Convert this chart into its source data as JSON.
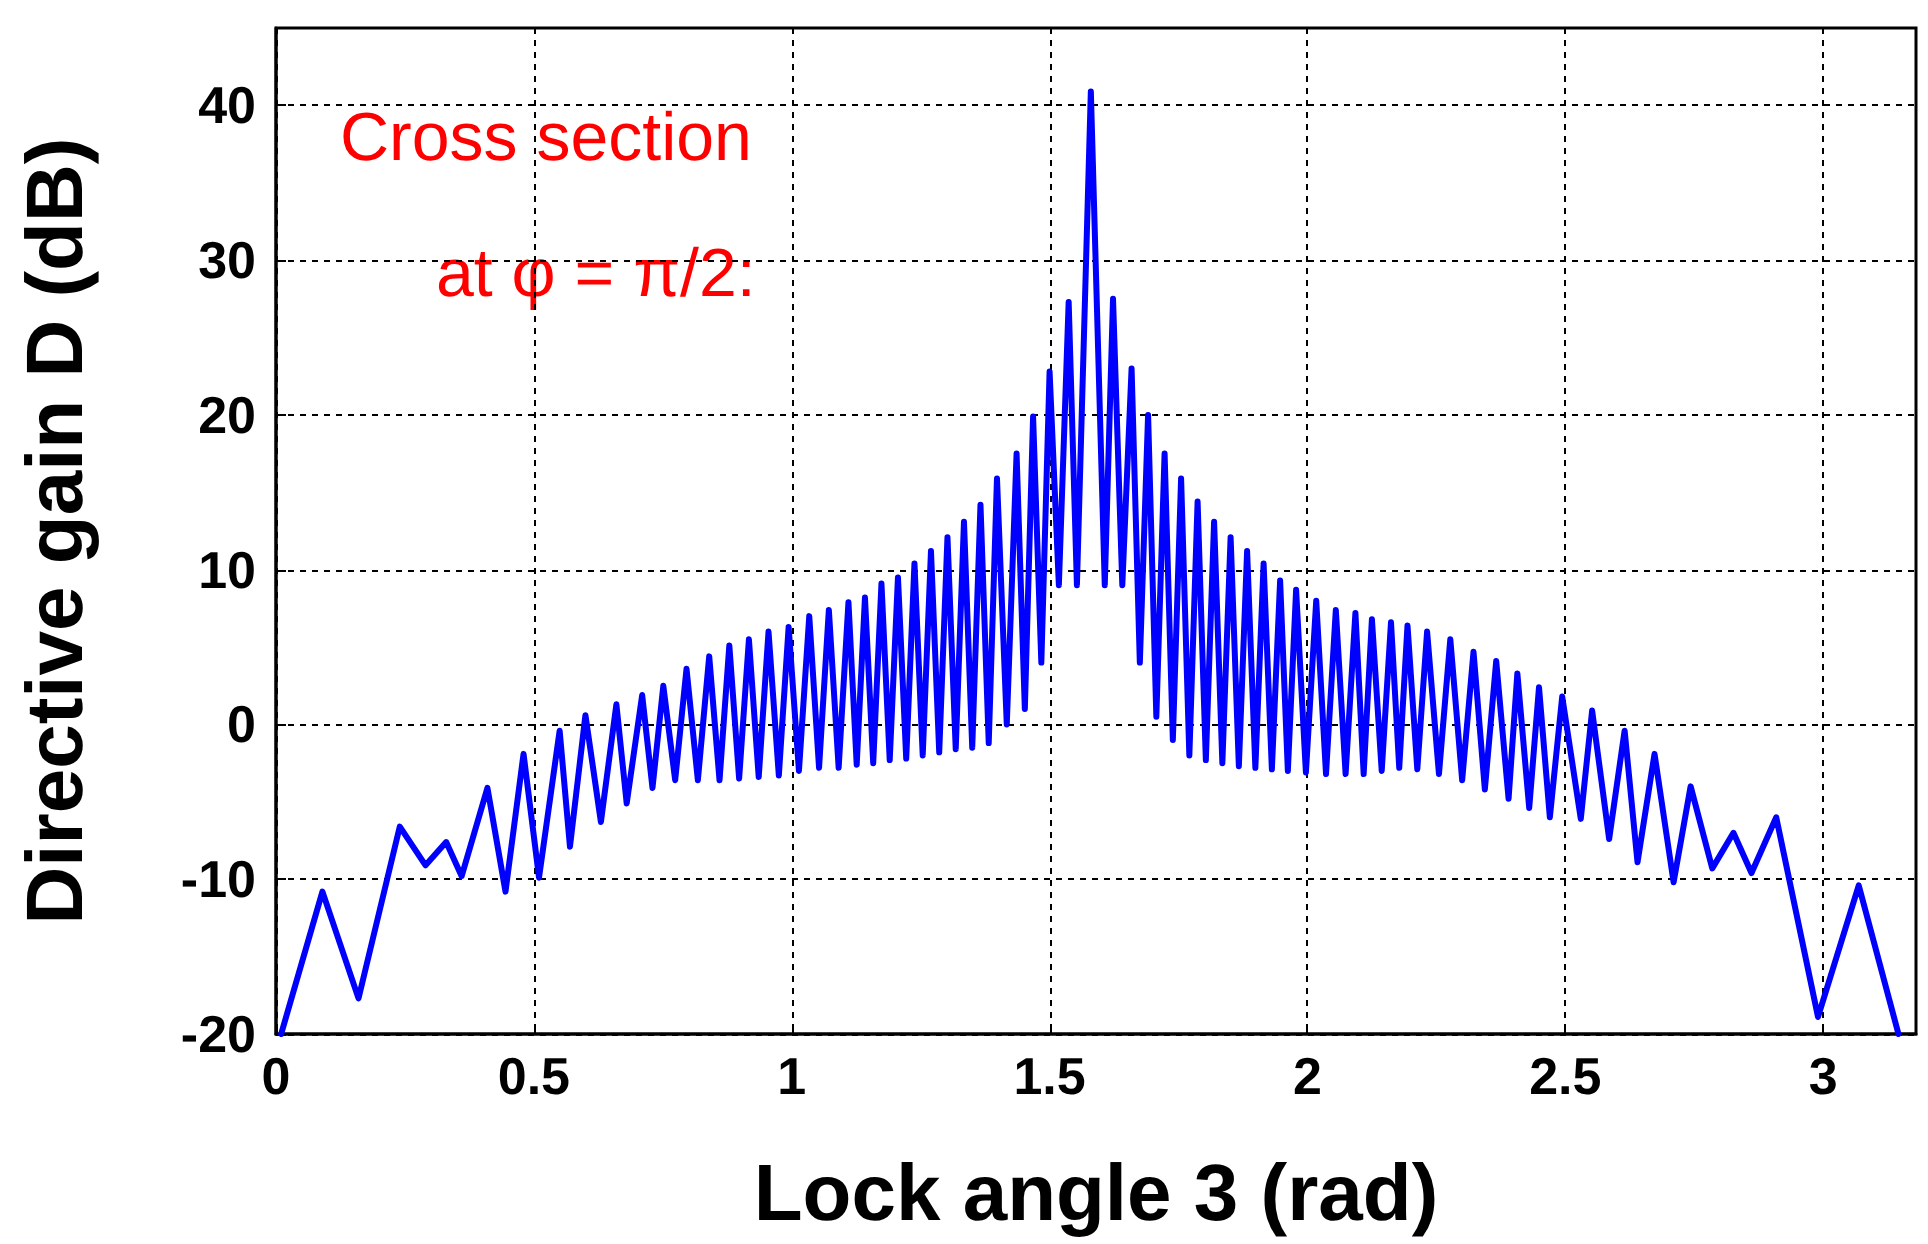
{
  "chart_data": {
    "type": "line",
    "xlabel": "Lock angle 3 (rad)",
    "ylabel": "Directive gain D (dB)",
    "annotations": [
      "Cross section",
      "at φ = π/2:"
    ],
    "xlim": [
      0,
      3.18
    ],
    "xticks": [
      0,
      0.5,
      1,
      1.5,
      2,
      2.5,
      3
    ],
    "ylim": [
      -20,
      45
    ],
    "yticks": [
      -20,
      -10,
      0,
      10,
      20,
      30,
      40
    ],
    "grid": true,
    "marker": "none",
    "line_style": "solid",
    "series": [
      {
        "color": "#0000ff",
        "x": [
          0.01,
          0.09,
          0.16,
          0.24,
          0.29,
          0.33,
          0.36,
          0.41,
          0.445,
          0.48,
          0.51,
          0.55,
          0.57,
          0.6,
          0.63,
          0.66,
          0.68,
          0.71,
          0.73,
          0.751,
          0.774,
          0.796,
          0.818,
          0.84,
          0.86,
          0.879,
          0.898,
          0.917,
          0.936,
          0.955,
          0.975,
          0.994,
          1.014,
          1.034,
          1.053,
          1.072,
          1.091,
          1.11,
          1.126,
          1.142,
          1.158,
          1.174,
          1.19,
          1.206,
          1.222,
          1.238,
          1.254,
          1.27,
          1.286,
          1.302,
          1.318,
          1.334,
          1.35,
          1.366,
          1.382,
          1.398,
          1.417,
          1.436,
          1.452,
          1.468,
          1.484,
          1.5,
          1.518,
          1.537,
          1.553,
          1.58,
          1.607,
          1.623,
          1.641,
          1.659,
          1.675,
          1.691,
          1.707,
          1.723,
          1.739,
          1.755,
          1.771,
          1.787,
          1.803,
          1.819,
          1.835,
          1.851,
          1.867,
          1.883,
          1.899,
          1.915,
          1.931,
          1.947,
          1.962,
          1.978,
          1.997,
          2.017,
          2.036,
          2.055,
          2.074,
          2.093,
          2.109,
          2.125,
          2.144,
          2.162,
          2.178,
          2.194,
          2.213,
          2.232,
          2.255,
          2.277,
          2.3,
          2.322,
          2.344,
          2.366,
          2.39,
          2.407,
          2.43,
          2.449,
          2.47,
          2.494,
          2.53,
          2.552,
          2.585,
          2.615,
          2.64,
          2.673,
          2.71,
          2.743,
          2.785,
          2.826,
          2.861,
          2.909,
          2.99,
          3.069,
          3.146
        ],
        "values": [
          -20,
          -10.8,
          -17.7,
          -6.6,
          -9.1,
          -7.6,
          -9.8,
          -4.1,
          -10.8,
          -1.9,
          -9.9,
          -0.4,
          -7.9,
          0.6,
          -6.3,
          1.3,
          -5.1,
          1.9,
          -4.1,
          2.5,
          -3.6,
          3.6,
          -3.6,
          4.4,
          -3.6,
          5.1,
          -3.5,
          5.5,
          -3.4,
          6,
          -3.3,
          6.3,
          -3,
          7,
          -2.8,
          7.4,
          -2.8,
          7.9,
          -2.6,
          8.2,
          -2.5,
          9.1,
          -2.3,
          9.5,
          -2.2,
          10.4,
          -2,
          11.2,
          -1.8,
          12.1,
          -1.6,
          13.1,
          -1.5,
          14.2,
          -1.2,
          15.9,
          0,
          17.5,
          1,
          19.9,
          4,
          22.8,
          9,
          27.3,
          9,
          40.9,
          9,
          27.5,
          9,
          23,
          4,
          20,
          0.5,
          17.5,
          -1,
          15.9,
          -2,
          14.4,
          -2.3,
          13.1,
          -2.5,
          12.1,
          -2.7,
          11.2,
          -2.8,
          10.4,
          -2.9,
          9.3,
          -3,
          8.7,
          -3.1,
          8,
          -3.2,
          7.4,
          -3.2,
          7.2,
          -3.2,
          6.8,
          -3,
          6.6,
          -2.8,
          6.4,
          -2.9,
          6,
          -3.2,
          5.5,
          -3.6,
          4.7,
          -4.2,
          4.1,
          -4.8,
          3.3,
          -5.4,
          2.4,
          -6,
          1.8,
          -6.1,
          0.9,
          -7.4,
          -0.4,
          -8.9,
          -1.9,
          -10.2,
          -4,
          -9.3,
          -7,
          -9.6,
          -6,
          -18.9,
          -10.4,
          -20
        ]
      }
    ]
  }
}
